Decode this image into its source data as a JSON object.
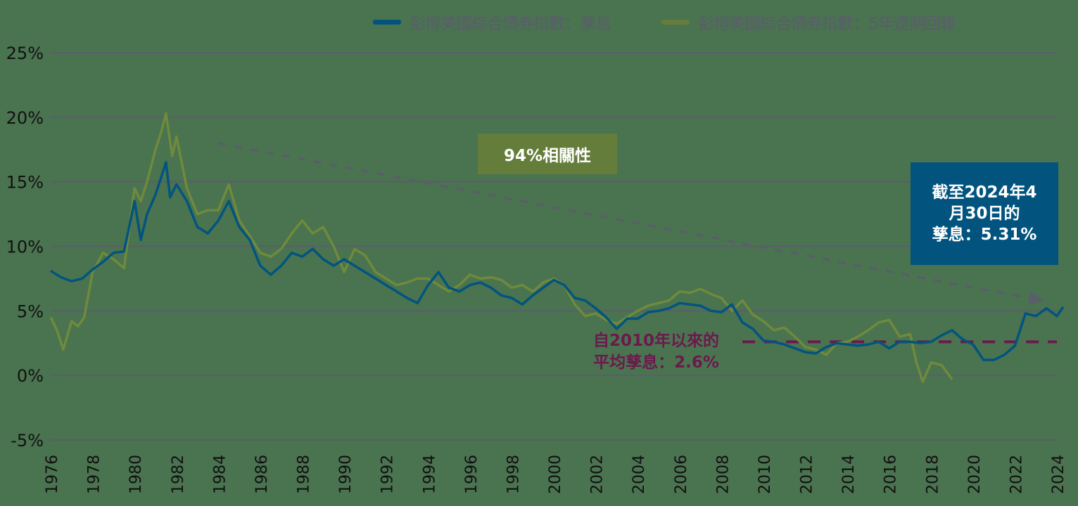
{
  "chart_data": {
    "type": "line",
    "title": "",
    "xlabel": "",
    "ylabel": "",
    "ylim": [
      -5,
      25
    ],
    "xlim": [
      1976,
      2024
    ],
    "grid": true,
    "legend_position": "top-right",
    "y_ticks": [
      "25%",
      "20%",
      "15%",
      "10%",
      "5%",
      "0%",
      "-5%"
    ],
    "y_tick_values": [
      25,
      20,
      15,
      10,
      5,
      0,
      -5
    ],
    "x_ticks": [
      "1976",
      "1978",
      "1980",
      "1982",
      "1984",
      "1986",
      "1988",
      "1990",
      "1992",
      "1994",
      "1996",
      "1998",
      "2000",
      "2002",
      "2004",
      "2006",
      "2008",
      "2010",
      "2012",
      "2014",
      "2016",
      "2018",
      "2020",
      "2022",
      "2024"
    ],
    "series": [
      {
        "name": "彭博美國綜合債券指數：孳息",
        "color": "#02547f",
        "x": [
          1976,
          1976.5,
          1977,
          1977.5,
          1978,
          1978.5,
          1979,
          1979.5,
          1980,
          1980.3,
          1980.6,
          1981,
          1981.5,
          1981.7,
          1982,
          1982.5,
          1983,
          1983.5,
          1984,
          1984.5,
          1985,
          1985.5,
          1986,
          1986.5,
          1987,
          1987.5,
          1988,
          1988.5,
          1989,
          1989.5,
          1990,
          1990.5,
          1991,
          1991.5,
          1992,
          1992.5,
          1993,
          1993.5,
          1994,
          1994.5,
          1995,
          1995.5,
          1996,
          1996.5,
          1997,
          1997.5,
          1998,
          1998.5,
          1999,
          1999.5,
          2000,
          2000.5,
          2001,
          2001.5,
          2002,
          2002.5,
          2003,
          2003.5,
          2004,
          2004.5,
          2005,
          2005.5,
          2006,
          2006.5,
          2007,
          2007.5,
          2008,
          2008.5,
          2009,
          2009.5,
          2010,
          2010.5,
          2011,
          2011.5,
          2012,
          2012.5,
          2013,
          2013.5,
          2014,
          2014.5,
          2015,
          2015.5,
          2016,
          2016.5,
          2017,
          2017.5,
          2018,
          2018.5,
          2019,
          2019.5,
          2020,
          2020.5,
          2021,
          2021.5,
          2022,
          2022.5,
          2023,
          2023.5,
          2024,
          2024.3
        ],
        "values": [
          8.1,
          7.6,
          7.3,
          7.5,
          8.2,
          8.8,
          9.5,
          9.6,
          13.5,
          10.5,
          12.5,
          14.0,
          16.5,
          13.8,
          14.8,
          13.5,
          11.5,
          11.0,
          12.0,
          13.5,
          11.5,
          10.5,
          8.5,
          7.8,
          8.5,
          9.5,
          9.2,
          9.8,
          9.0,
          8.5,
          9.0,
          8.5,
          8.0,
          7.5,
          7.0,
          6.5,
          6.0,
          5.6,
          7.0,
          8.0,
          6.8,
          6.5,
          7.0,
          7.2,
          6.8,
          6.2,
          6.0,
          5.5,
          6.2,
          6.8,
          7.4,
          7.0,
          6.0,
          5.8,
          5.2,
          4.5,
          3.6,
          4.4,
          4.4,
          4.9,
          5.0,
          5.2,
          5.6,
          5.5,
          5.4,
          5.0,
          4.9,
          5.5,
          4.1,
          3.6,
          2.7,
          2.6,
          2.4,
          2.1,
          1.8,
          1.7,
          2.2,
          2.5,
          2.4,
          2.3,
          2.4,
          2.6,
          2.1,
          2.6,
          2.6,
          2.5,
          2.6,
          3.1,
          3.5,
          2.8,
          2.4,
          1.2,
          1.2,
          1.6,
          2.3,
          4.8,
          4.6,
          5.2,
          4.6,
          5.3
        ]
      },
      {
        "name": "彭博美國綜合債券指數：5年遠期回報",
        "color": "#657d3b",
        "x": [
          1976,
          1976.3,
          1976.6,
          1977,
          1977.3,
          1977.6,
          1978,
          1978.5,
          1979,
          1979.5,
          1980,
          1980.3,
          1980.6,
          1981,
          1981.3,
          1981.5,
          1981.8,
          1982,
          1982.5,
          1983,
          1983.5,
          1984,
          1984.5,
          1985,
          1985.5,
          1986,
          1986.5,
          1987,
          1987.5,
          1988,
          1988.5,
          1989,
          1989.5,
          1990,
          1990.5,
          1991,
          1991.5,
          1992,
          1992.5,
          1993,
          1993.5,
          1994,
          1994.5,
          1995,
          1995.5,
          1996,
          1996.5,
          1997,
          1997.5,
          1998,
          1998.5,
          1999,
          1999.5,
          2000,
          2000.5,
          2001,
          2001.5,
          2002,
          2002.5,
          2003,
          2003.5,
          2004,
          2004.5,
          2005,
          2005.5,
          2006,
          2006.5,
          2007,
          2007.5,
          2008,
          2008.5,
          2009,
          2009.5,
          2010,
          2010.5,
          2011,
          2011.5,
          2012,
          2012.5,
          2013,
          2013.5,
          2014,
          2014.5,
          2015,
          2015.5,
          2016,
          2016.5,
          2017,
          2017.3,
          2017.6,
          2018,
          2018.5,
          2019
        ],
        "values": [
          4.5,
          3.5,
          2.0,
          4.2,
          3.8,
          4.5,
          8.0,
          9.5,
          9.0,
          8.3,
          14.5,
          13.5,
          15.0,
          17.5,
          19.0,
          20.3,
          17.0,
          18.5,
          14.5,
          12.5,
          12.8,
          12.8,
          14.8,
          12.0,
          10.8,
          9.5,
          9.2,
          9.8,
          11.0,
          12.0,
          11.0,
          11.5,
          10.0,
          8.0,
          9.8,
          9.3,
          8.0,
          7.5,
          7.0,
          7.2,
          7.5,
          7.5,
          7.0,
          6.5,
          7.0,
          7.8,
          7.5,
          7.6,
          7.4,
          6.8,
          7.0,
          6.5,
          7.2,
          7.5,
          7.0,
          5.5,
          4.6,
          4.8,
          4.3,
          4.0,
          4.5,
          5.0,
          5.4,
          5.6,
          5.8,
          6.5,
          6.4,
          6.7,
          6.3,
          6.0,
          5.0,
          5.8,
          4.7,
          4.2,
          3.5,
          3.7,
          3.0,
          2.2,
          2.0,
          1.6,
          2.5,
          2.6,
          3.0,
          3.5,
          4.1,
          4.3,
          3.0,
          3.2,
          1.0,
          -0.5,
          1.0,
          0.8,
          -0.3
        ]
      }
    ],
    "annotations": [
      {
        "text": "94%相關性",
        "type": "box"
      },
      {
        "text": "截至2024年4月30日的孳息：5.31%",
        "type": "box"
      },
      {
        "text": "自2010年以來的平均孳息：2.6%",
        "type": "reference_line",
        "value": 2.6,
        "x_start": 2009.0,
        "x_end": 2024
      }
    ],
    "trend_arrow": {
      "from": [
        1984,
        18.0
      ],
      "to": [
        2023.2,
        5.8
      ]
    }
  },
  "legend": {
    "yield_label": "彭博美國綜合債券指數：孳息",
    "forward_label": "彭博美國綜合債券指數：5年遠期回報"
  },
  "annotations": {
    "correlation": "94%相關性",
    "current_yield_line1": "截至2024年4",
    "current_yield_line2": "月30日的",
    "current_yield_line3": "孳息：5.31%",
    "average_line1": "自2010年以來的",
    "average_line2": "平均孳息：2.6%"
  },
  "colors": {
    "background": "#4a7350",
    "yield": "#02547f",
    "forward": "#657d3b",
    "forward_line": "#6f8a3c",
    "average": "#6b1a4c",
    "grid": "#5a5d6b",
    "trend": "#5a5d6b"
  }
}
